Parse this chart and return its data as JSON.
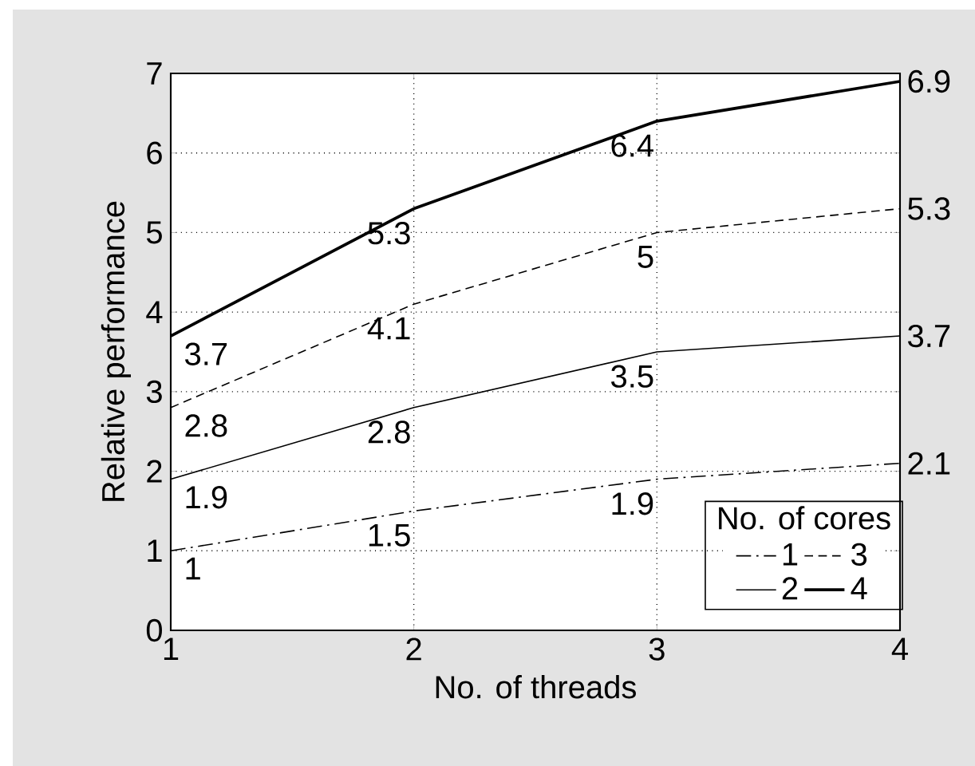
{
  "chart_data": {
    "type": "line",
    "xlabel": "No. of threads",
    "ylabel": "Relative performance",
    "legend_title": "No. of cores",
    "x": [
      1,
      2,
      3,
      4
    ],
    "xlim": [
      1,
      4
    ],
    "xticks": [
      1,
      2,
      3,
      4
    ],
    "ylim": [
      0,
      7
    ],
    "yticks": [
      0,
      1,
      2,
      3,
      4,
      5,
      6,
      7
    ],
    "grid": true,
    "legend": "bottom right",
    "data_labels": true,
    "marker": "none",
    "series": [
      {
        "name": "1",
        "color": "#000000",
        "line_style": "dashdot",
        "values": [
          1,
          1.5,
          1.9,
          2.1
        ]
      },
      {
        "name": "2",
        "color": "#000000",
        "line_style": "solid",
        "values": [
          1.9,
          2.8,
          3.5,
          3.7
        ]
      },
      {
        "name": "3",
        "color": "#000000",
        "line_style": "dashed",
        "values": [
          2.8,
          4.1,
          5,
          5.3
        ]
      },
      {
        "name": "4",
        "color": "#000000",
        "line_style": "solid",
        "values": [
          3.7,
          5.3,
          6.4,
          6.9
        ]
      }
    ]
  }
}
